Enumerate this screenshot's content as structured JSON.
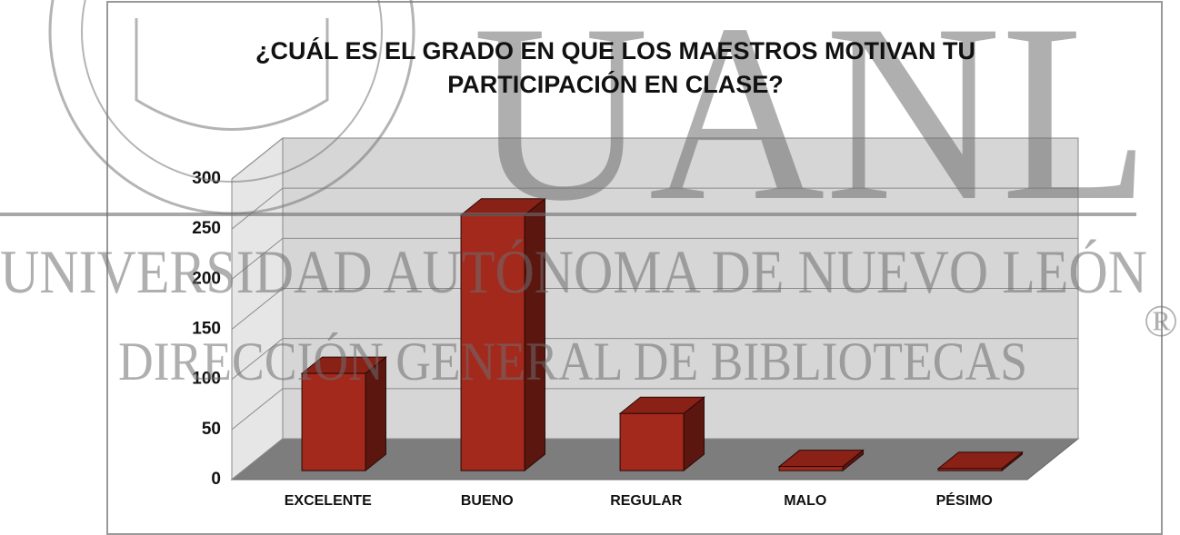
{
  "chart_data": {
    "type": "bar3d",
    "title": "¿CUÁL ES EL GRADO EN QUE LOS MAESTROS MOTIVAN TU PARTICIPACIÓN EN CLASE?",
    "categories": [
      "EXCELENTE",
      "BUENO",
      "REGULAR",
      "MALO",
      "PÉSIMO"
    ],
    "values": [
      97,
      255,
      57,
      4,
      2
    ],
    "color": "#a3291d",
    "ylim": [
      0,
      300
    ],
    "yticks": [
      0,
      50,
      100,
      150,
      200,
      250,
      300
    ],
    "grid": true
  },
  "watermark": {
    "logo": "UANL",
    "line1": "UNIVERSIDAD AUTÓNOMA DE NUEVO LEÓN",
    "line2": "DIRECCIÓN GENERAL DE BIBLIOTECAS",
    "mark": "®"
  }
}
